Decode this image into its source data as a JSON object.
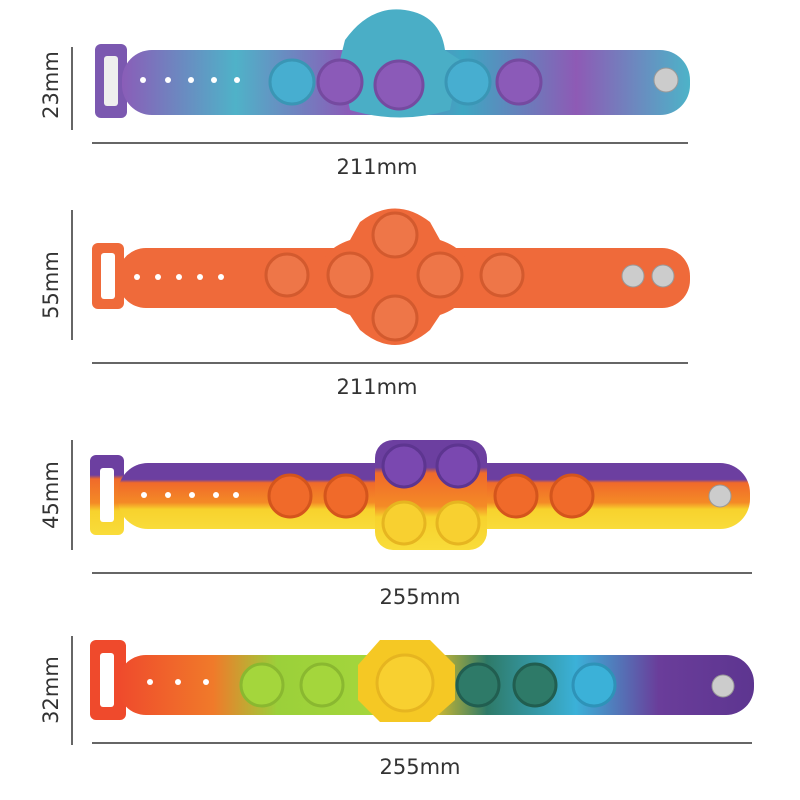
{
  "products": [
    {
      "height": "23mm",
      "width": "211mm"
    },
    {
      "height": "55mm",
      "width": "211mm"
    },
    {
      "height": "45mm",
      "width": "255mm"
    },
    {
      "height": "32mm",
      "width": "255mm"
    }
  ]
}
